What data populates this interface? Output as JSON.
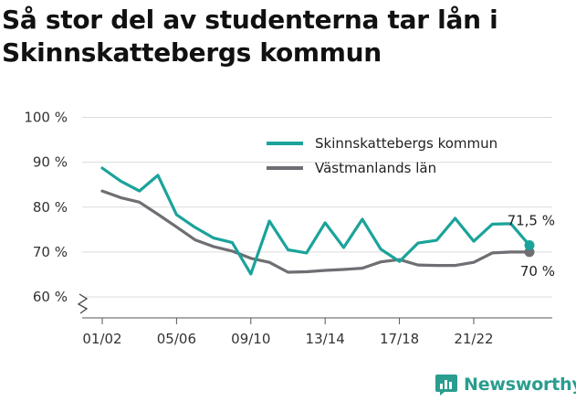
{
  "title": "Så stor del av studenterna tar lån i Skinnskattebergs kommun",
  "brand": {
    "name": "Newsworthy",
    "icon": "newsworthy-logo-icon",
    "color": "#2a9d8f"
  },
  "chart_data": {
    "type": "line",
    "title": "Så stor del av studenterna tar lån i Skinnskattebergs kommun",
    "xlabel": "",
    "ylabel": "",
    "x": [
      "01/02",
      "02/03",
      "03/04",
      "04/05",
      "05/06",
      "06/07",
      "07/08",
      "08/09",
      "09/10",
      "10/11",
      "11/12",
      "12/13",
      "13/14",
      "14/15",
      "15/16",
      "16/17",
      "17/18",
      "18/19",
      "19/20",
      "20/21",
      "21/22",
      "22/23",
      "23/24",
      "24/25"
    ],
    "x_tick_labels": [
      "01/02",
      "05/06",
      "09/10",
      "13/14",
      "17/18",
      "21/22"
    ],
    "y_ticks": [
      60,
      70,
      80,
      90,
      100
    ],
    "y_tick_labels": [
      "60 %",
      "70 %",
      "80 %",
      "90 %",
      "100 %"
    ],
    "ylim": [
      60,
      100
    ],
    "y_axis_break": true,
    "grid": true,
    "legend_position": "top-right",
    "series": [
      {
        "name": "Skinnskattebergs kommun",
        "color": "#1aa39a",
        "values": [
          88.7,
          85.8,
          83.6,
          87.1,
          78.3,
          75.5,
          73.1,
          72.1,
          65.1,
          76.9,
          70.5,
          69.8,
          76.5,
          71.0,
          77.3,
          70.6,
          67.9,
          72.0,
          72.6,
          77.5,
          72.4,
          76.2,
          76.3,
          71.5
        ],
        "end_label": "71,5 %"
      },
      {
        "name": "Västmanlands län",
        "color": "#6e6e73",
        "values": [
          83.6,
          82.1,
          81.1,
          78.4,
          75.6,
          72.7,
          71.2,
          70.2,
          68.6,
          67.7,
          65.5,
          65.6,
          65.9,
          66.1,
          66.4,
          67.8,
          68.3,
          67.1,
          67.0,
          67.0,
          67.7,
          69.8,
          70.0,
          70.0
        ],
        "end_label": "70 %"
      }
    ]
  }
}
